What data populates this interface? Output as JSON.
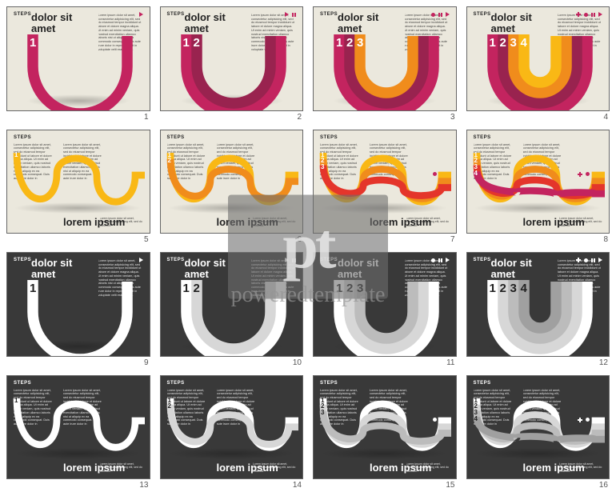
{
  "watermark": {
    "logo_text": "pt",
    "text": "poweredtemplate"
  },
  "common": {
    "steps_label": "STEPS",
    "title1_line1": "dolor sit",
    "title1_line2": "amet",
    "title2": "lorem ipsum",
    "lorem": "Lorem ipsum dolor sit amet, consectetur adipisicing elit, sed do eiusmod tempor incididunt ut labore et dolore magna aliqua. Ut enim ad minim veniam, quis nostrud exercitation ullamco laboris nisi ut aliquip ex ea commodo consequat. Duis aute irure dolor in reprehenderit in voluptate velit esse cillum.",
    "lorem_short": "Lorem ipsum dolor sit amet, consectetur adipisicing elit, sed do eiusmod."
  },
  "colors": {
    "magenta": "#c3245f",
    "magenta_dark": "#99234f",
    "red": "#e4352b",
    "orange": "#f08c1c",
    "yellow": "#f9b815",
    "white": "#ffffff",
    "g1": "#ffffff",
    "g2": "#d7d7d7",
    "g3": "#bcbcbc",
    "g4": "#a0a0a0",
    "light_bg": "#ebe8dd",
    "dark_bg": "#393939",
    "text_dark": "#222222",
    "text_light": "#ffffff",
    "light_icon": "#c3245f",
    "dark_icon": "#ffffff"
  },
  "band_width": 13,
  "step_digits": [
    "1",
    "2",
    "3",
    "4"
  ],
  "slides": [
    {
      "theme": "light",
      "layout": "u",
      "bands": 1,
      "icons": [
        "play"
      ],
      "palette": "color"
    },
    {
      "theme": "light",
      "layout": "u",
      "bands": 2,
      "icons": [
        "play",
        "pause"
      ],
      "palette": "color"
    },
    {
      "theme": "light",
      "layout": "u",
      "bands": 3,
      "icons": [
        "dot",
        "pause",
        "play"
      ],
      "palette": "color"
    },
    {
      "theme": "light",
      "layout": "u",
      "bands": 4,
      "icons": [
        "plus",
        "dot",
        "pause",
        "play"
      ],
      "palette": "color"
    },
    {
      "theme": "light",
      "layout": "w",
      "bands": 1,
      "icons": [
        "play"
      ],
      "palette": "color"
    },
    {
      "theme": "light",
      "layout": "w",
      "bands": 2,
      "icons": [
        "play",
        "pause"
      ],
      "palette": "color"
    },
    {
      "theme": "light",
      "layout": "w",
      "bands": 3,
      "icons": [
        "dot",
        "pause",
        "play"
      ],
      "palette": "color"
    },
    {
      "theme": "light",
      "layout": "w",
      "bands": 4,
      "icons": [
        "plus",
        "dot",
        "pause",
        "play"
      ],
      "palette": "color"
    },
    {
      "theme": "dark",
      "layout": "u",
      "bands": 1,
      "icons": [
        "play"
      ],
      "palette": "gray"
    },
    {
      "theme": "dark",
      "layout": "u",
      "bands": 2,
      "icons": [
        "play",
        "pause"
      ],
      "palette": "gray"
    },
    {
      "theme": "dark",
      "layout": "u",
      "bands": 3,
      "icons": [
        "dot",
        "pause",
        "play"
      ],
      "palette": "gray"
    },
    {
      "theme": "dark",
      "layout": "u",
      "bands": 4,
      "icons": [
        "plus",
        "dot",
        "pause",
        "play"
      ],
      "palette": "gray"
    },
    {
      "theme": "dark",
      "layout": "w",
      "bands": 1,
      "icons": [
        "play"
      ],
      "palette": "gray"
    },
    {
      "theme": "dark",
      "layout": "w",
      "bands": 2,
      "icons": [
        "play",
        "pause"
      ],
      "palette": "gray"
    },
    {
      "theme": "dark",
      "layout": "w",
      "bands": 3,
      "icons": [
        "dot",
        "pause",
        "play"
      ],
      "palette": "gray"
    },
    {
      "theme": "dark",
      "layout": "w",
      "bands": 4,
      "icons": [
        "plus",
        "dot",
        "pause",
        "play"
      ],
      "palette": "gray"
    }
  ],
  "palette_color_u": [
    "#c3245f",
    "#99234f",
    "#f08c1c",
    "#f9b815"
  ],
  "palette_color_w": [
    "#f9b815",
    "#f08c1c",
    "#e4352b",
    "#c3245f"
  ],
  "palette_gray": [
    "#ffffff",
    "#d7d7d7",
    "#bcbcbc",
    "#a0a0a0"
  ],
  "font": {
    "title_size": 13,
    "steps_size": 6,
    "num_size_u": 15,
    "num_size_w": 8
  }
}
